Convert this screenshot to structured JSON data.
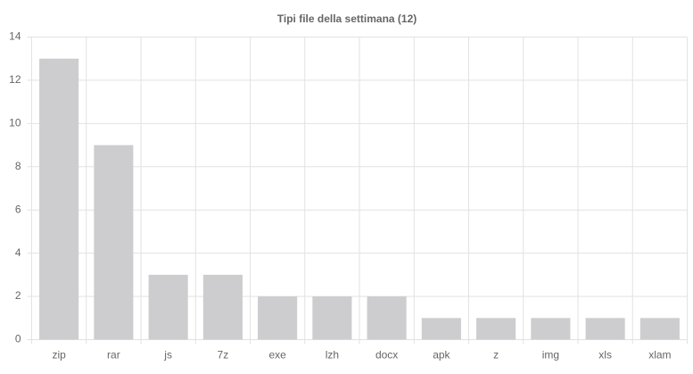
{
  "chart_data": {
    "type": "bar",
    "title": "Tipi file della settimana (12)",
    "categories": [
      "zip",
      "rar",
      "js",
      "7z",
      "exe",
      "lzh",
      "docx",
      "apk",
      "z",
      "img",
      "xls",
      "xlam"
    ],
    "values": [
      13,
      9,
      3,
      3,
      2,
      2,
      2,
      1,
      1,
      1,
      1,
      1
    ],
    "color": "#cdcdcf",
    "ylim": [
      0,
      14
    ],
    "yticks": [
      0,
      2,
      4,
      6,
      8,
      10,
      12,
      14
    ],
    "grid": true
  }
}
